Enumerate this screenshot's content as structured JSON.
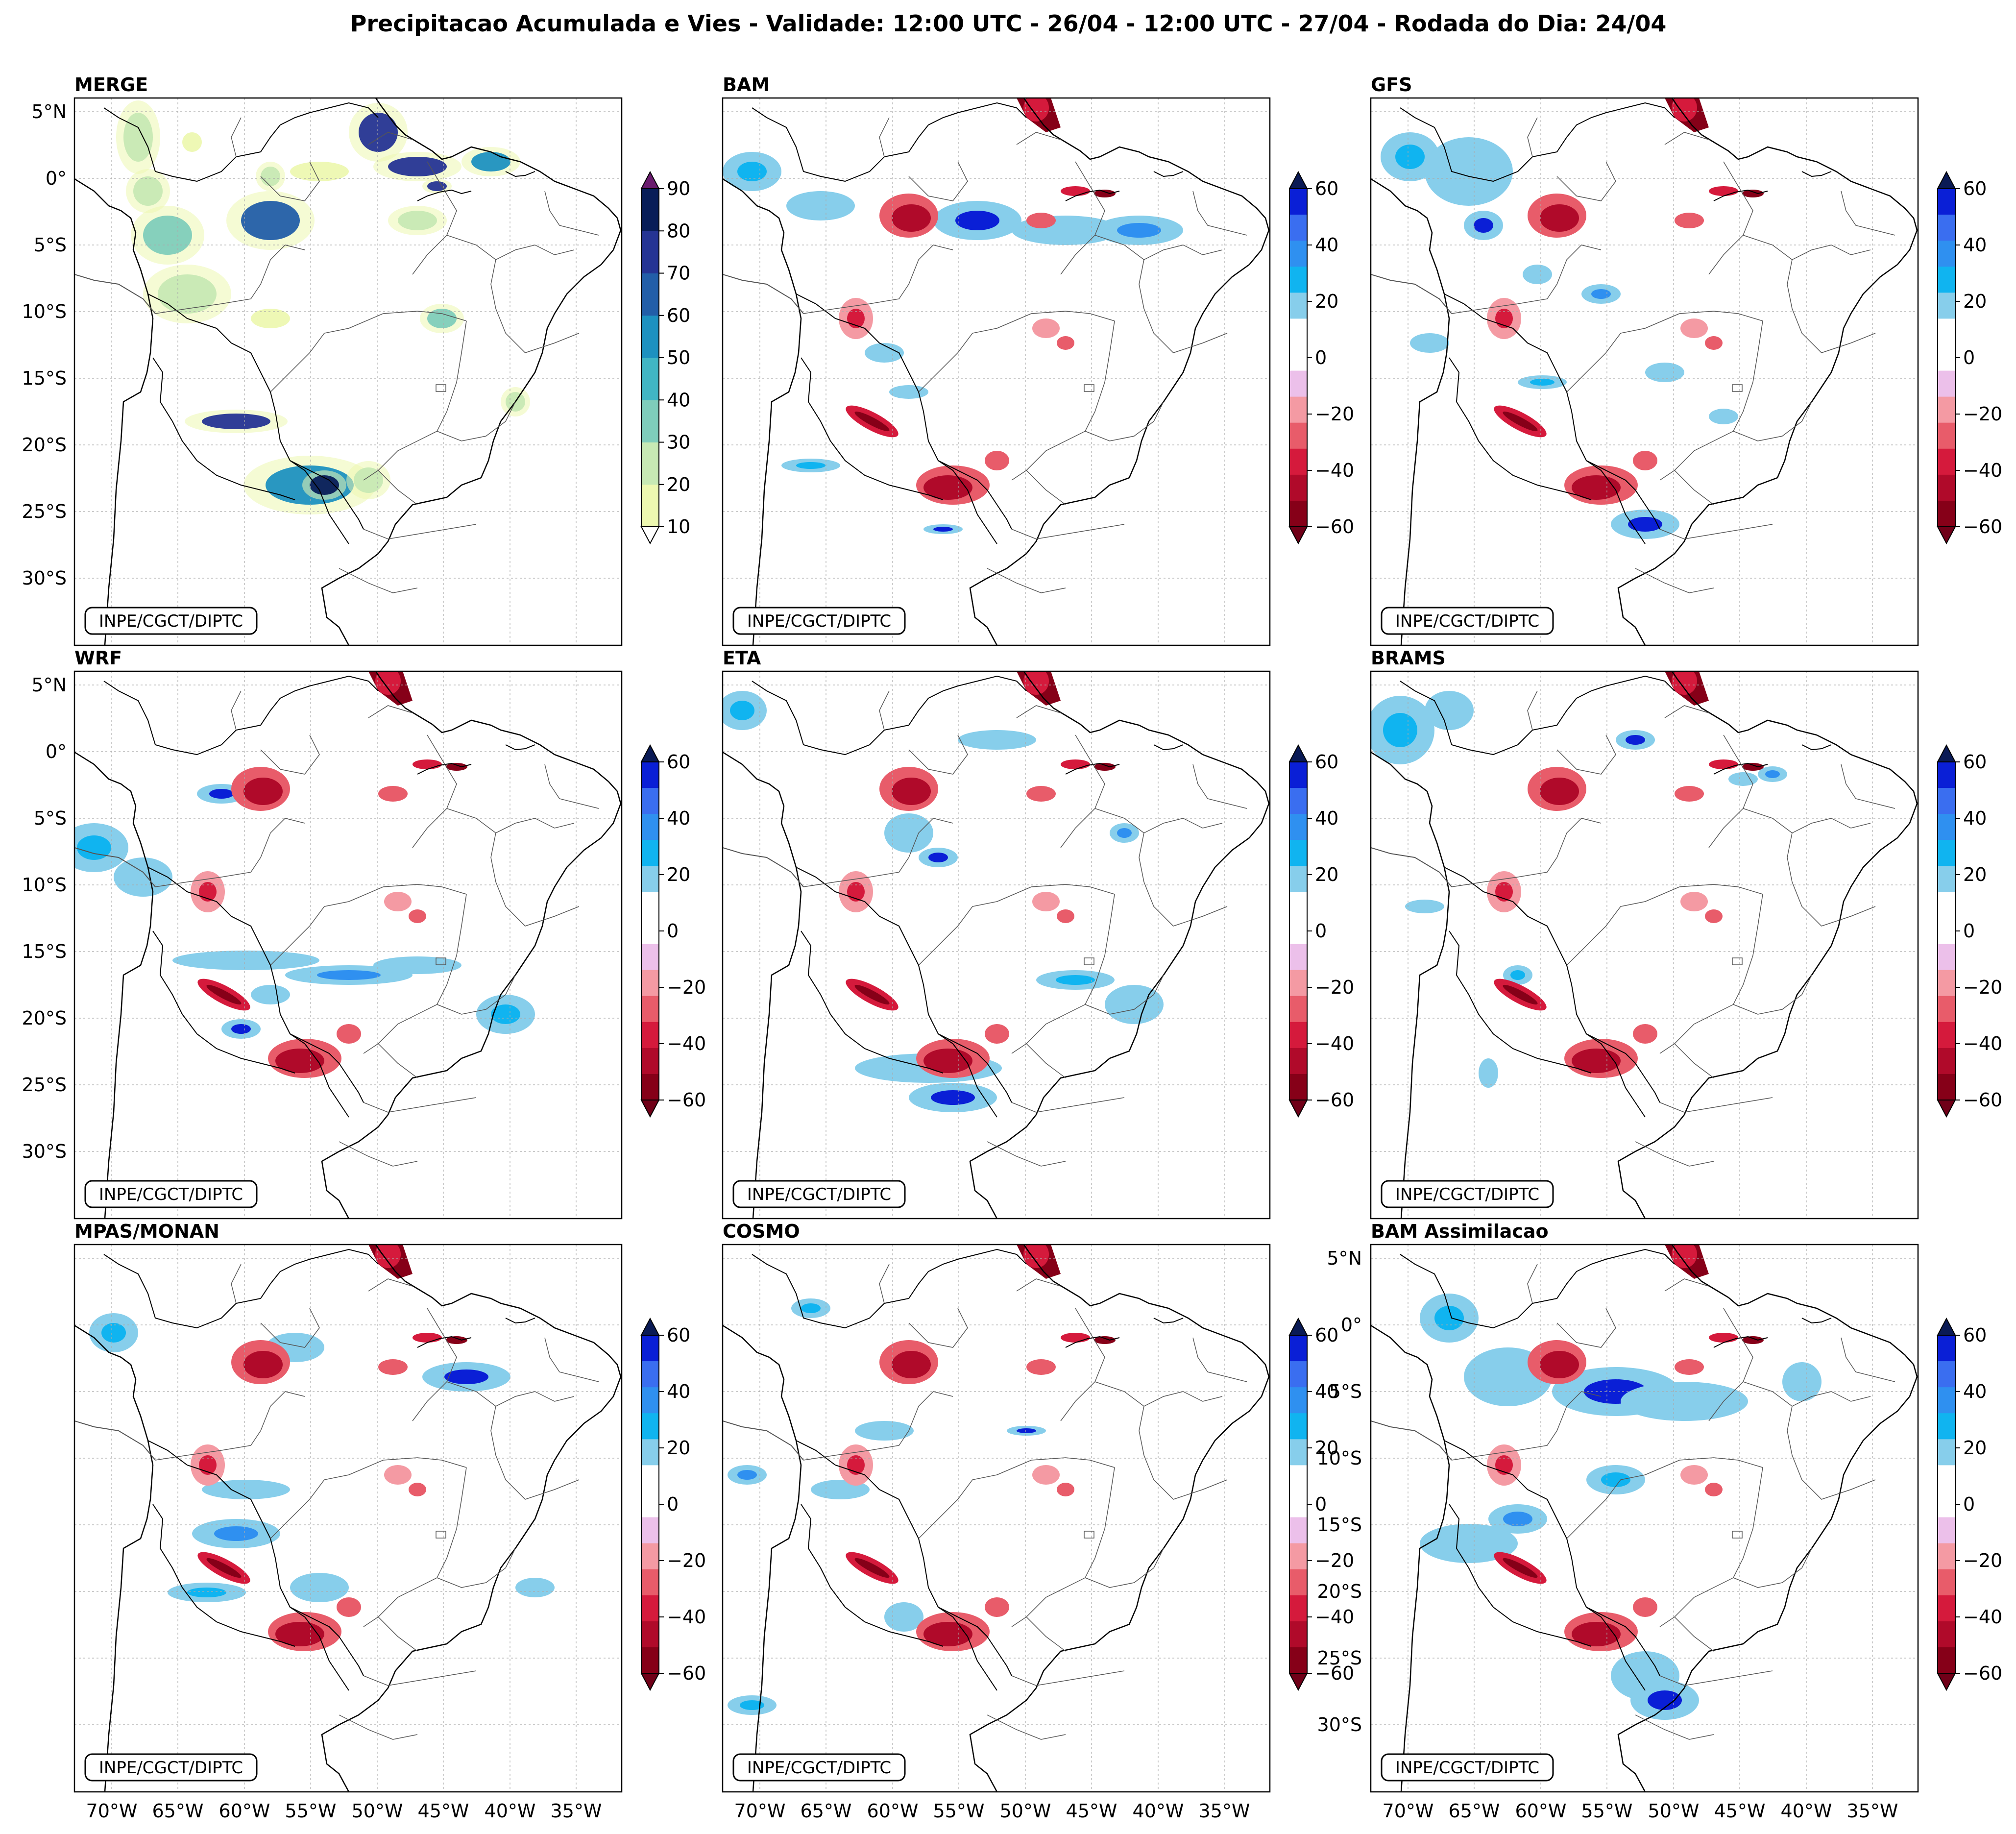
{
  "title": "Precipitacao Acumulada e Vies - Validade: 12:00 UTC - 26/04 - 12:00 UTC - 27/04 - Rodada do Dia: 24/04",
  "credit": "INPE/CGCT/DIPTC",
  "panels": [
    {
      "name": "MERGE",
      "kind": "precip"
    },
    {
      "name": "BAM",
      "kind": "bias"
    },
    {
      "name": "GFS",
      "kind": "bias"
    },
    {
      "name": "WRF",
      "kind": "bias"
    },
    {
      "name": "ETA",
      "kind": "bias"
    },
    {
      "name": "BRAMS",
      "kind": "bias"
    },
    {
      "name": "MPAS/MONAN",
      "kind": "bias"
    },
    {
      "name": "COSMO",
      "kind": "bias"
    },
    {
      "name": "BAM Assimilacao",
      "kind": "bias"
    }
  ],
  "lat_labels": [
    "5°N",
    "0°",
    "5°S",
    "10°S",
    "15°S",
    "20°S",
    "25°S",
    "30°S"
  ],
  "lon_labels": [
    "70°W",
    "65°W",
    "60°W",
    "55°W",
    "50°W",
    "45°W",
    "40°W",
    "35°W"
  ],
  "precip_colorbar": {
    "ticks": [
      "10",
      "20",
      "30",
      "40",
      "50",
      "60",
      "70",
      "80",
      "90"
    ],
    "colors": [
      "#edf8b1",
      "#c7e9b4",
      "#7fcdbb",
      "#41b6c4",
      "#1d91c0",
      "#225ea8",
      "#253494",
      "#081d58"
    ],
    "under_color": "#ffffff",
    "over_color": "#6a1c6e"
  },
  "bias_colorbar": {
    "ticks": [
      "60",
      "40",
      "20",
      "0",
      "−20",
      "−40",
      "−60"
    ],
    "colors_top_to_bottom": [
      "#0a1fd6",
      "#3a6ef0",
      "#2f90f0",
      "#10b4f0",
      "#87ceeb",
      "#ffffff",
      "#ffffff",
      "#ecc0ea",
      "#f49aa3",
      "#e85c6a",
      "#d51a3c",
      "#b00a2a",
      "#860018"
    ],
    "over_color": "#0a1a55",
    "under_color": "#700018"
  }
}
